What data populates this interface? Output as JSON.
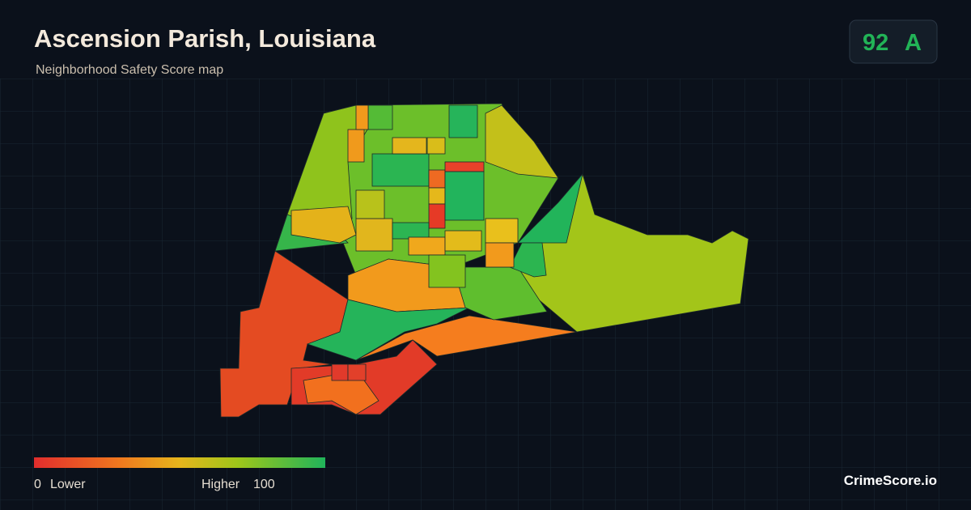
{
  "header": {
    "title": "Ascension Parish, Louisiana",
    "subtitle": "Neighborhood Safety Score map"
  },
  "badge": {
    "score": 92,
    "grade": "A"
  },
  "legend": {
    "min": 0,
    "min_label": "Lower",
    "max_label": "Higher",
    "max": 100
  },
  "brand": "CrimeScore.io"
}
